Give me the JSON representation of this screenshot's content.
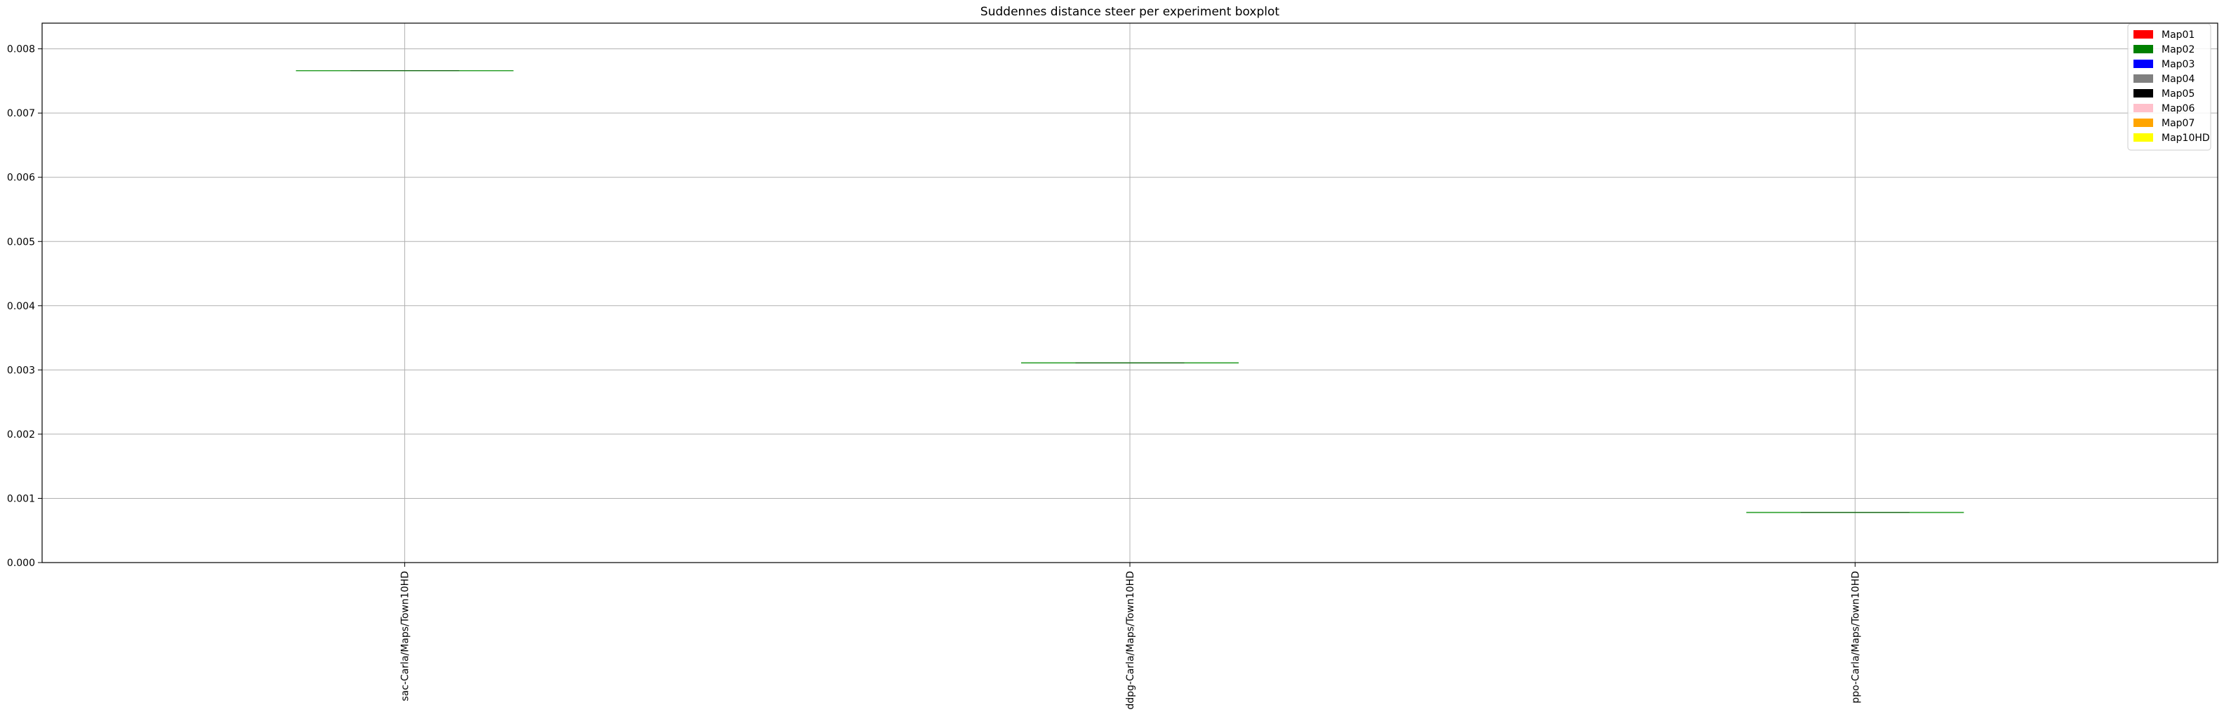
{
  "chart_data": {
    "type": "boxplot",
    "title": "Suddennes distance steer per experiment boxplot",
    "xlabel": "",
    "ylabel": "",
    "ylim": [
      0,
      0.0084
    ],
    "yticks": [
      "0.000",
      "0.001",
      "0.002",
      "0.003",
      "0.004",
      "0.005",
      "0.006",
      "0.007",
      "0.008"
    ],
    "ytick_values": [
      0,
      0.001,
      0.002,
      0.003,
      0.004,
      0.005,
      0.006,
      0.007,
      0.008
    ],
    "categories": [
      "sac-Carla/Maps/Town10HD",
      "ddpg-Carla/Maps/Town10HD",
      "ppo-Carla/Maps/Town10HD"
    ],
    "series": [
      {
        "name": "Map10HD",
        "color": "#ffff00",
        "median_color": "#2ca02c",
        "values": [
          0.00766,
          0.00311,
          0.00078
        ]
      }
    ],
    "legend": {
      "position": "top-right",
      "entries": [
        {
          "label": "Map01",
          "color": "#ff0000"
        },
        {
          "label": "Map02",
          "color": "#008000"
        },
        {
          "label": "Map03",
          "color": "#0000ff"
        },
        {
          "label": "Map04",
          "color": "#808080"
        },
        {
          "label": "Map05",
          "color": "#000000"
        },
        {
          "label": "Map06",
          "color": "#ffc0cb"
        },
        {
          "label": "Map07",
          "color": "#ffa500"
        },
        {
          "label": "Map10HD",
          "color": "#ffff00"
        }
      ]
    },
    "grid": true
  }
}
